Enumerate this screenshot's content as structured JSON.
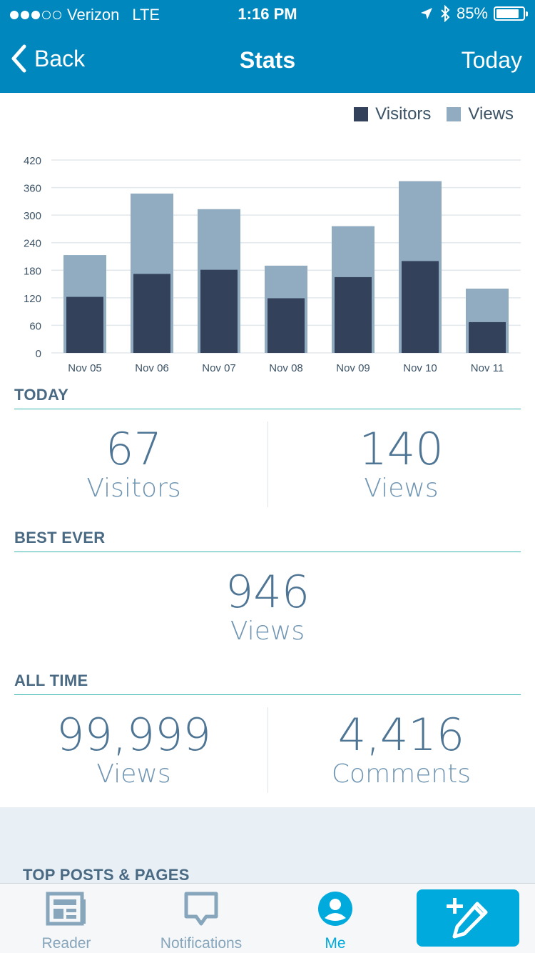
{
  "status_bar": {
    "carrier": "Verizon",
    "network": "LTE",
    "time": "1:16 PM",
    "battery": "85%",
    "battery_level": 0.85,
    "signal_bars": 3,
    "icons": [
      "location-arrow-icon",
      "bluetooth-icon",
      "battery-icon"
    ]
  },
  "nav": {
    "back_label": "Back",
    "title": "Stats",
    "period_label": "Today"
  },
  "legend": {
    "visitors": "Visitors",
    "views": "Views"
  },
  "colors": {
    "brand": "#0087be",
    "visitors": "#33415a",
    "views": "#91acc1",
    "accent": "#00aadc",
    "divider": "#38b6b0"
  },
  "chart_data": {
    "type": "bar",
    "stacked": false,
    "overlay": true,
    "categories": [
      "Nov 05",
      "Nov 06",
      "Nov 07",
      "Nov 08",
      "Nov 09",
      "Nov 10",
      "Nov 11"
    ],
    "series": [
      {
        "name": "Visitors",
        "values": [
          122,
          172,
          181,
          119,
          165,
          200,
          67
        ]
      },
      {
        "name": "Views",
        "values": [
          213,
          347,
          313,
          190,
          276,
          374,
          140
        ]
      }
    ],
    "yticks": [
      0,
      60,
      120,
      180,
      240,
      300,
      360,
      420
    ],
    "ylim": [
      0,
      420
    ],
    "grid": true,
    "legend": "top-right"
  },
  "today": {
    "header": "TODAY",
    "visitors_value": "67",
    "visitors_label": "Visitors",
    "views_value": "140",
    "views_label": "Views"
  },
  "best_ever": {
    "header": "BEST EVER",
    "views_value": "946",
    "views_label": "Views"
  },
  "all_time": {
    "header": "ALL TIME",
    "views_value": "99,999",
    "views_label": "Views",
    "comments_value": "4,416",
    "comments_label": "Comments"
  },
  "top_posts": {
    "header": "TOP POSTS & PAGES"
  },
  "tabbar": {
    "reader": "Reader",
    "notifications": "Notifications",
    "me": "Me",
    "active": "Me"
  }
}
